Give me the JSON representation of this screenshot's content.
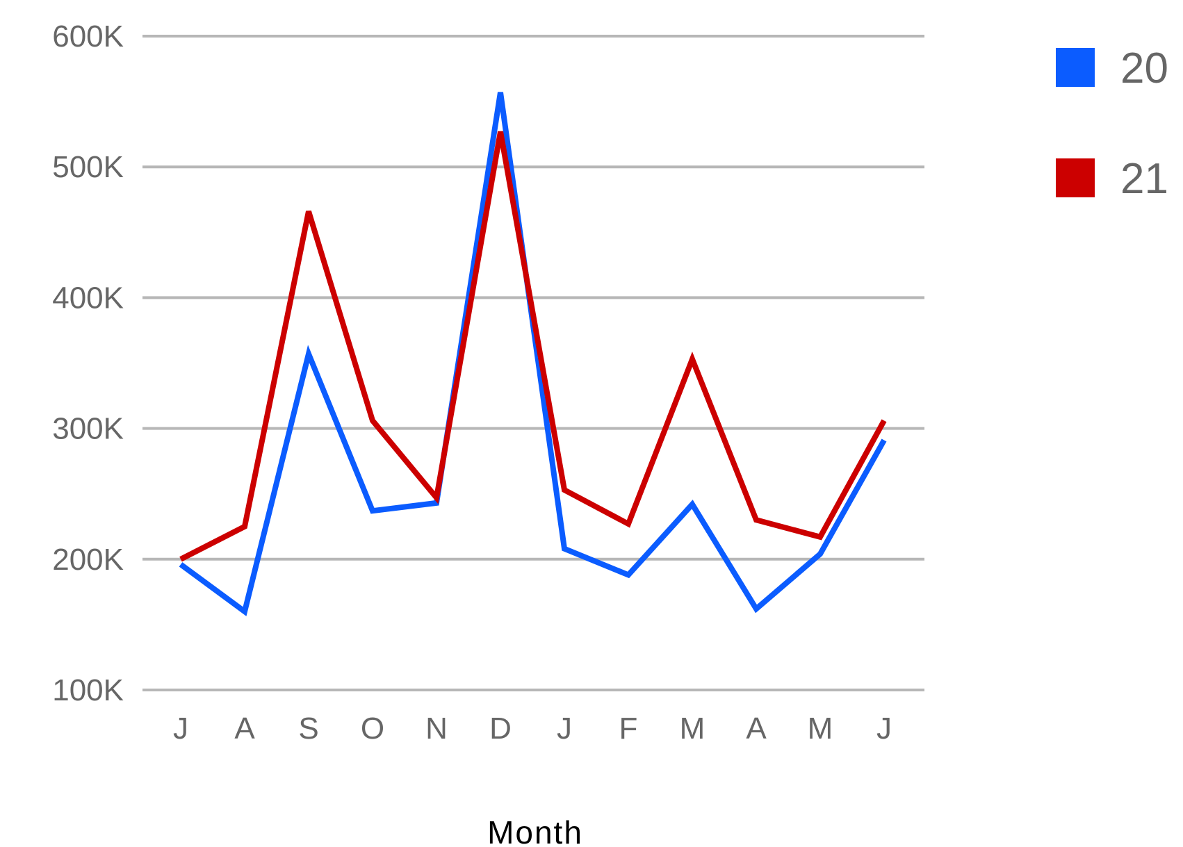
{
  "chart_data": {
    "type": "line",
    "categories": [
      "J",
      "A",
      "S",
      "O",
      "N",
      "D",
      "J",
      "F",
      "M",
      "A",
      "M",
      "J"
    ],
    "series": [
      {
        "name": "20",
        "color": "#0b5cff",
        "values": [
          196000,
          160000,
          357000,
          237000,
          243000,
          557000,
          208000,
          188000,
          242000,
          162000,
          204000,
          291000
        ]
      },
      {
        "name": "21",
        "color": "#cc0000",
        "values": [
          200000,
          225000,
          466000,
          306000,
          247000,
          527000,
          253000,
          227000,
          353000,
          230000,
          217000,
          306000
        ]
      }
    ],
    "title": "",
    "xlabel": "Month",
    "ylabel": "",
    "ylim": [
      100000,
      600000
    ],
    "y_ticks": [
      {
        "value": 100000,
        "label": "100K"
      },
      {
        "value": 200000,
        "label": "200K"
      },
      {
        "value": 300000,
        "label": "300K"
      },
      {
        "value": 400000,
        "label": "400K"
      },
      {
        "value": 500000,
        "label": "500K"
      },
      {
        "value": 600000,
        "label": "600K"
      }
    ],
    "grid": true,
    "legend_position": "right",
    "gridline_color": "#b7b7b7"
  }
}
